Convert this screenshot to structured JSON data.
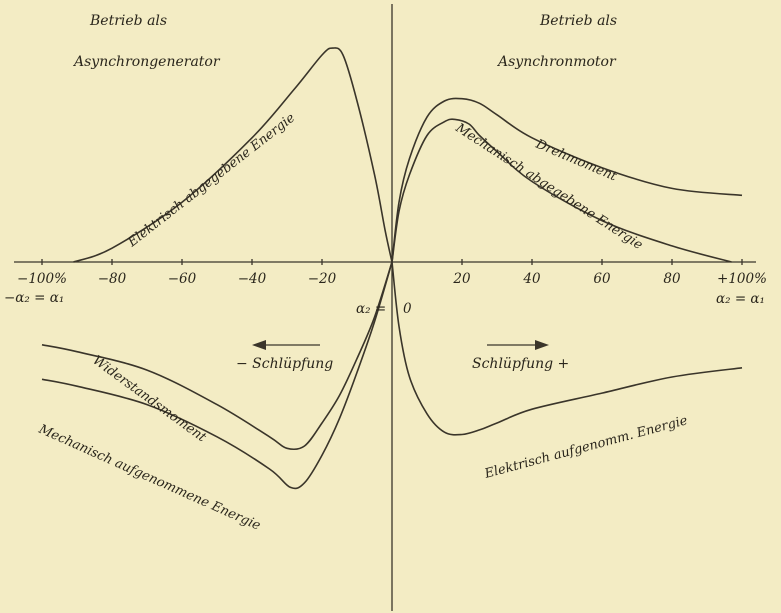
{
  "chart_data": {
    "type": "line",
    "x_axis": {
      "min": -100,
      "max": 100,
      "ticks": [
        -100,
        -80,
        -60,
        -40,
        -20,
        20,
        40,
        60,
        80,
        100
      ],
      "tick_labels": [
        "−100%",
        "−80",
        "−60",
        "−40",
        "−20",
        "20",
        "40",
        "60",
        "80",
        "+100%"
      ],
      "origin_label": "0",
      "left_end_label": "−α₂ = α₁",
      "right_end_label": "α₂ = α₁",
      "center_label": "α₂ ="
    },
    "y_axis": {
      "min": -100,
      "max": 100,
      "grid": false
    },
    "region_labels": {
      "left_top_line1": "Betrieb als",
      "left_top_line2": "Asynchrongenerator",
      "right_top_line1": "Betrieb als",
      "right_top_line2": "Asynchronmotor"
    },
    "direction_labels": {
      "negative": "− Schlüpfung",
      "positive": "Schlüpfung +"
    },
    "series": [
      {
        "name": "Elektrisch abgegebene Energie",
        "x": [
          -91,
          -80,
          -60,
          -40,
          -28,
          -20,
          -17,
          -14,
          -10,
          -5,
          -2,
          0
        ],
        "y": [
          0,
          6,
          26,
          54,
          75,
          90,
          93,
          90,
          70,
          38,
          14,
          0
        ]
      },
      {
        "name": "Drehmoment",
        "x": [
          0,
          2,
          5,
          10,
          15,
          20,
          25,
          30,
          40,
          60,
          80,
          100
        ],
        "y": [
          0,
          26,
          45,
          63,
          70,
          71,
          69,
          64,
          54,
          41,
          32,
          29
        ]
      },
      {
        "name": "Mechanisch abgegebene Energie",
        "x": [
          0,
          2,
          5,
          10,
          15,
          18,
          22,
          25,
          30,
          40,
          60,
          80,
          97
        ],
        "y": [
          0,
          22,
          38,
          55,
          61,
          62,
          60,
          55,
          48,
          35,
          18,
          7,
          0
        ]
      },
      {
        "name": "Widerstandsmoment",
        "x": [
          -100,
          -90,
          -70,
          -50,
          -35,
          -30,
          -25,
          -20,
          -15,
          -10,
          -5,
          0
        ],
        "y": [
          -36,
          -39,
          -47,
          -62,
          -76,
          -81,
          -80,
          -70,
          -58,
          -42,
          -24,
          0
        ]
      },
      {
        "name": "Mechanisch aufgenommene Energie",
        "x": [
          -100,
          -90,
          -70,
          -50,
          -35,
          -29,
          -25,
          -20,
          -15,
          -10,
          -5,
          0
        ],
        "y": [
          -51,
          -54,
          -62,
          -76,
          -90,
          -98,
          -96,
          -84,
          -68,
          -48,
          -26,
          0
        ]
      },
      {
        "name": "Elektrisch aufgenomm. Energie",
        "x": [
          0,
          2,
          5,
          10,
          15,
          20,
          25,
          30,
          40,
          60,
          80,
          100
        ],
        "y": [
          0,
          -28,
          -50,
          -66,
          -74,
          -75,
          -73,
          -70,
          -64,
          -57,
          -50,
          -46
        ]
      }
    ]
  }
}
